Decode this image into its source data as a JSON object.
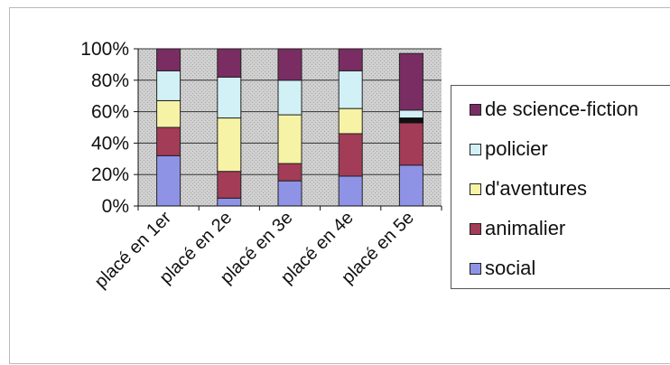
{
  "chart_data": {
    "type": "bar",
    "stacked": true,
    "percent_stacked": true,
    "categories": [
      "placé en 1er",
      "placé en 2e",
      "placé en 3e",
      "placé en 4e",
      "placé en 5e"
    ],
    "series": [
      {
        "name": "social",
        "color": "#8f93e6",
        "values": [
          32,
          5,
          16,
          19,
          26
        ]
      },
      {
        "name": "animalier",
        "color": "#a33c57",
        "values": [
          18,
          17,
          11,
          27,
          27
        ]
      },
      {
        "name": "d'aventures",
        "color": "#f7f3a6",
        "values": [
          17,
          34,
          31,
          16,
          0
        ]
      },
      {
        "name": "policier",
        "color": "#d2f1f7",
        "values": [
          19,
          26,
          22,
          24,
          8
        ]
      },
      {
        "name": "de science-fiction",
        "color": "#7a2d63",
        "values": [
          14,
          18,
          20,
          14,
          36
        ]
      }
    ],
    "marker_series": {
      "name": "",
      "values": [
        0,
        0,
        0,
        0,
        3
      ]
    },
    "y_ticks": [
      "0%",
      "20%",
      "40%",
      "60%",
      "80%",
      "100%"
    ],
    "ylim": [
      0,
      100
    ],
    "plot_background": "#c8c8c8",
    "grid": true,
    "legend_position": "right",
    "legend_order": [
      "de science-fiction",
      "policier",
      "d'aventures",
      "animalier",
      "social"
    ]
  }
}
